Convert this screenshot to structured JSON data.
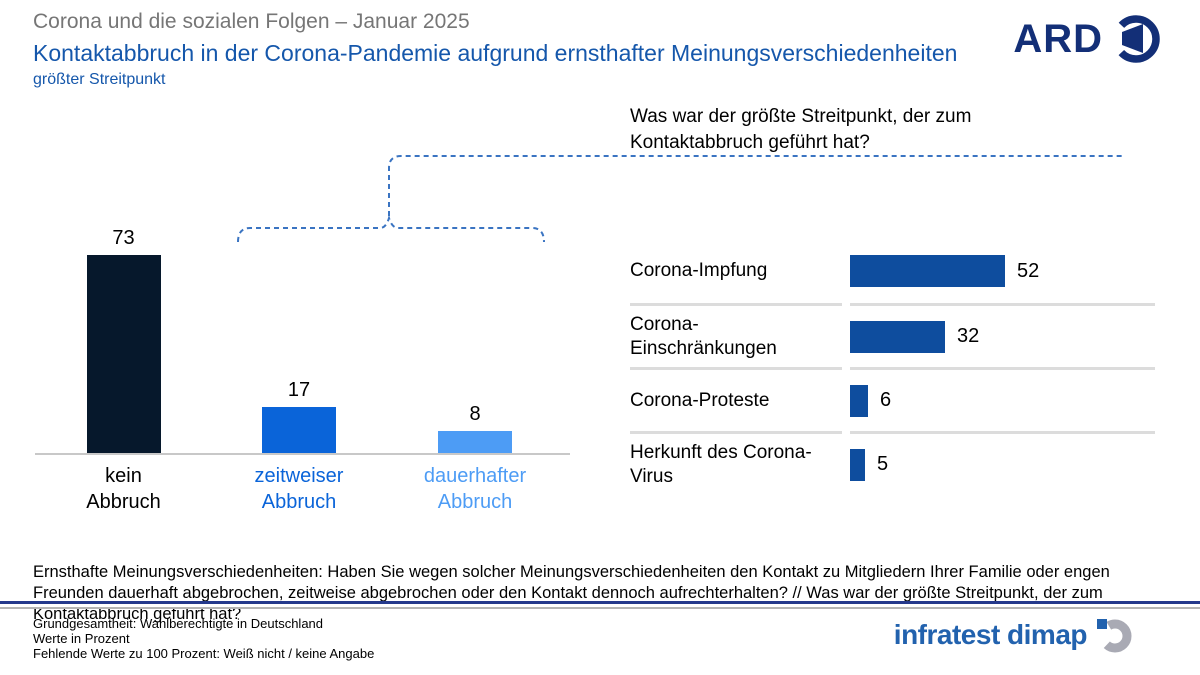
{
  "header": {
    "pretitle": "Corona und die sozialen Folgen – Januar 2025",
    "title": "Kontaktabbruch in der Corona-Pandemie aufgrund ernsthafter Meinungsverschiedenheiten",
    "subtitle": "größter Streitpunkt",
    "brand": "ARD"
  },
  "question": "Was war der größte Streitpunkt, der zum Kontaktabbruch geführt hat?",
  "chart_data": [
    {
      "type": "bar",
      "orientation": "vertical",
      "title": "Kontaktabbruch in der Corona-Pandemie",
      "categories": [
        "kein\nAbbruch",
        "zeitweiser\nAbbruch",
        "dauerhafter\nAbbruch"
      ],
      "values": [
        73,
        17,
        8
      ],
      "unit": "Prozent",
      "ylim": [
        0,
        100
      ],
      "grid": false,
      "bar_colors": [
        "#06182c",
        "#0a64d9",
        "#4d9cf5"
      ],
      "label_colors": [
        "#000000",
        "#0a64d9",
        "#4d9cf5"
      ]
    },
    {
      "type": "bar",
      "orientation": "horizontal",
      "title": "größter Streitpunkt, der zum Kontaktabbruch geführt hat",
      "categories": [
        "Corona-Impfung",
        "Corona-Einschränkungen",
        "Corona-Proteste",
        "Herkunft des Corona-Virus"
      ],
      "values": [
        52,
        32,
        6,
        5
      ],
      "unit": "Prozent",
      "xlim": [
        0,
        100
      ],
      "grid": false,
      "bar_color": "#0e4d9e"
    }
  ],
  "footer": {
    "survey_question": "Ernsthafte Meinungsverschiedenheiten: Haben Sie wegen solcher Meinungsverschiedenheiten den Kontakt zu Mitgliedern Ihrer Familie oder engen Freunden dauerhaft abgebrochen, zeitweise abgebrochen oder den Kontakt dennoch aufrechterhalten? // Was war der größte Streitpunkt, der zum Kontaktabbruch geführt hat?",
    "notes": [
      "Grundgesamtheit: Wahlberechtigte in Deutschland",
      "Werte in Prozent",
      "Fehlende Werte zu 100 Prozent: Weiß nicht / keine Angabe"
    ],
    "brand": "infratest dimap"
  },
  "colors": {
    "accent_blue": "#1557ab",
    "ard_navy": "#132f77",
    "infratest_blue": "#2262ae",
    "dashed_line": "#3a74c2",
    "separator": "#dcdcdc",
    "baseline": "#c8c8c8"
  }
}
